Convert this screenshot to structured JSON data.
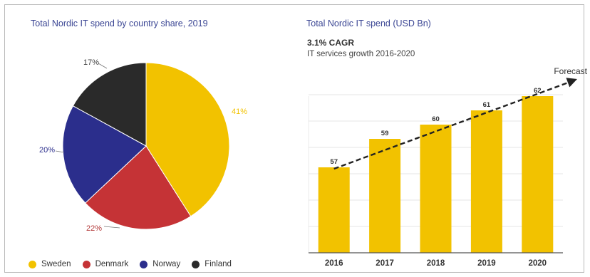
{
  "colors": {
    "sweden": "#f2c200",
    "denmark": "#c53336",
    "norway": "#2b2e8c",
    "finland": "#2a2a2a",
    "bar": "#f2c200",
    "title": "#3b4694"
  },
  "left_panel": {
    "title": "Total Nordic IT spend by country share, 2019"
  },
  "right_panel": {
    "title": "Total Nordic IT spend (USD Bn)",
    "cagr": "3.1% CAGR",
    "cagr_note": "IT services growth 2016-2020",
    "forecast_label": "Forecast"
  },
  "chart_data": [
    {
      "type": "pie",
      "title": "Total Nordic IT spend by country share, 2019",
      "slices": [
        {
          "name": "Sweden",
          "value": 41,
          "label": "41%"
        },
        {
          "name": "Denmark",
          "value": 22,
          "label": "22%"
        },
        {
          "name": "Norway",
          "value": 20,
          "label": "20%"
        },
        {
          "name": "Finland",
          "value": 17,
          "label": "17%"
        }
      ],
      "legend": "bottom"
    },
    {
      "type": "bar",
      "title": "Total Nordic IT spend (USD Bn)",
      "categories": [
        "2016",
        "2017",
        "2018",
        "2019",
        "2020"
      ],
      "values": [
        57,
        59,
        60,
        61,
        62
      ],
      "data_labels": [
        "57",
        "59",
        "60",
        "61",
        "62"
      ],
      "grid": true,
      "annotation": "Forecast"
    }
  ]
}
